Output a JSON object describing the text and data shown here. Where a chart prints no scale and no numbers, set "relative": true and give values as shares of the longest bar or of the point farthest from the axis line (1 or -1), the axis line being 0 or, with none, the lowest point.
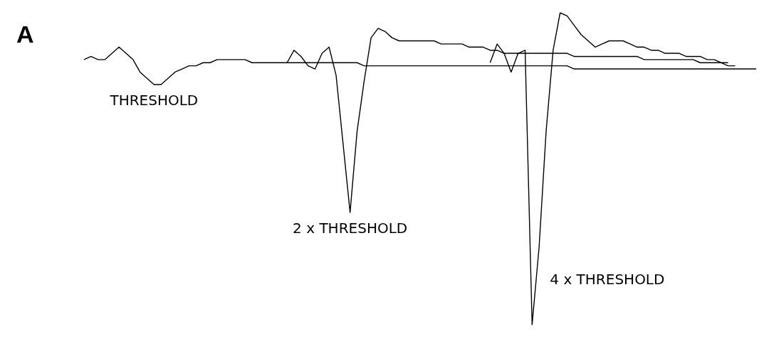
{
  "chart_data": {
    "type": "line",
    "title": "A",
    "relative": true,
    "categories": [
      null,
      null,
      null,
      null,
      null,
      null,
      null,
      null,
      null,
      null,
      null,
      null,
      null,
      null,
      null,
      null,
      null,
      null,
      null,
      null,
      null,
      null,
      null,
      null,
      null,
      null,
      null,
      null,
      null,
      null,
      null,
      null,
      null,
      null,
      null,
      null,
      null,
      null,
      null,
      null,
      null,
      null,
      null,
      null,
      null,
      null,
      null,
      null,
      null,
      null,
      null,
      null,
      null,
      null,
      null,
      null,
      null,
      null,
      null,
      null,
      null,
      null,
      null,
      null,
      null,
      null,
      null,
      null,
      null,
      null,
      null,
      null,
      null,
      null,
      null,
      null,
      null,
      null,
      null,
      null,
      null,
      null,
      null,
      null,
      null,
      null,
      null,
      null,
      null,
      null,
      null,
      null,
      null,
      null,
      null,
      null,
      null
    ],
    "series": [
      {
        "name": "THRESHOLD",
        "color": "#000000",
        "values": [
          0.85,
          0.86,
          0.85,
          0.85,
          0.87,
          0.89,
          0.87,
          0.85,
          0.81,
          0.79,
          0.77,
          0.77,
          0.79,
          0.81,
          0.82,
          0.83,
          0.83,
          0.84,
          0.84,
          0.85,
          0.85,
          0.85,
          0.85,
          0.85,
          0.84,
          0.84,
          0.84,
          0.84,
          0.84,
          0.84,
          0.84,
          0.84,
          0.84,
          0.84,
          0.84,
          0.84,
          0.84,
          0.84,
          0.84,
          0.84,
          0.83,
          0.83,
          0.83,
          0.83,
          0.83,
          0.83,
          0.83,
          0.83,
          0.83,
          0.83,
          0.83,
          0.83,
          0.83,
          0.83,
          0.83,
          0.83,
          0.83,
          0.83,
          0.83,
          0.83,
          0.83,
          0.83,
          0.83,
          0.83,
          0.83,
          0.83,
          0.83,
          0.83,
          0.83,
          0.83,
          0.82,
          0.82,
          0.82,
          0.82,
          0.82,
          0.82,
          0.82,
          0.82,
          0.82,
          0.82,
          0.82,
          0.82,
          0.82,
          0.82,
          0.82,
          0.82,
          0.82,
          0.82,
          0.82,
          0.82,
          0.82,
          0.82,
          0.82,
          0.82,
          0.82,
          0.82,
          0.82
        ]
      },
      {
        "name": "2 x THRESHOLD",
        "color": "#000000",
        "values": [
          null,
          null,
          null,
          null,
          null,
          null,
          null,
          null,
          null,
          null,
          null,
          null,
          null,
          null,
          null,
          null,
          null,
          null,
          null,
          null,
          null,
          null,
          null,
          null,
          null,
          null,
          null,
          null,
          null,
          0.84,
          0.88,
          0.86,
          0.83,
          0.82,
          0.87,
          0.89,
          0.8,
          0.58,
          0.36,
          0.62,
          0.78,
          0.92,
          0.95,
          0.94,
          0.92,
          0.91,
          0.91,
          0.91,
          0.91,
          0.91,
          0.91,
          0.9,
          0.9,
          0.9,
          0.9,
          0.89,
          0.89,
          0.89,
          0.88,
          0.88,
          0.87,
          0.87,
          0.87,
          0.87,
          0.87,
          0.87,
          0.87,
          0.87,
          0.87,
          0.87,
          0.86,
          0.86,
          0.86,
          0.86,
          0.86,
          0.86,
          0.86,
          0.86,
          0.86,
          0.86,
          0.85,
          0.85,
          0.85,
          0.85,
          0.85,
          0.85,
          0.85,
          0.85,
          0.84,
          0.84,
          0.84,
          0.84,
          0.84,
          null,
          null,
          null,
          null
        ]
      },
      {
        "name": "4 x THRESHOLD",
        "color": "#000000",
        "values": [
          null,
          null,
          null,
          null,
          null,
          null,
          null,
          null,
          null,
          null,
          null,
          null,
          null,
          null,
          null,
          null,
          null,
          null,
          null,
          null,
          null,
          null,
          null,
          null,
          null,
          null,
          null,
          null,
          null,
          null,
          null,
          null,
          null,
          null,
          null,
          null,
          null,
          null,
          null,
          null,
          null,
          null,
          null,
          null,
          null,
          null,
          null,
          null,
          null,
          null,
          null,
          null,
          null,
          null,
          null,
          null,
          null,
          null,
          0.84,
          0.9,
          0.87,
          0.81,
          0.87,
          0.88,
          0,
          0.25,
          0.62,
          0.88,
          1,
          0.99,
          0.96,
          0.93,
          0.91,
          0.89,
          0.9,
          0.91,
          0.91,
          0.91,
          0.9,
          0.89,
          0.89,
          0.88,
          0.88,
          0.87,
          0.87,
          0.87,
          0.86,
          0.86,
          0.86,
          0.85,
          0.85,
          0.84,
          0.83,
          0.83,
          null,
          null,
          null
        ]
      }
    ]
  }
}
